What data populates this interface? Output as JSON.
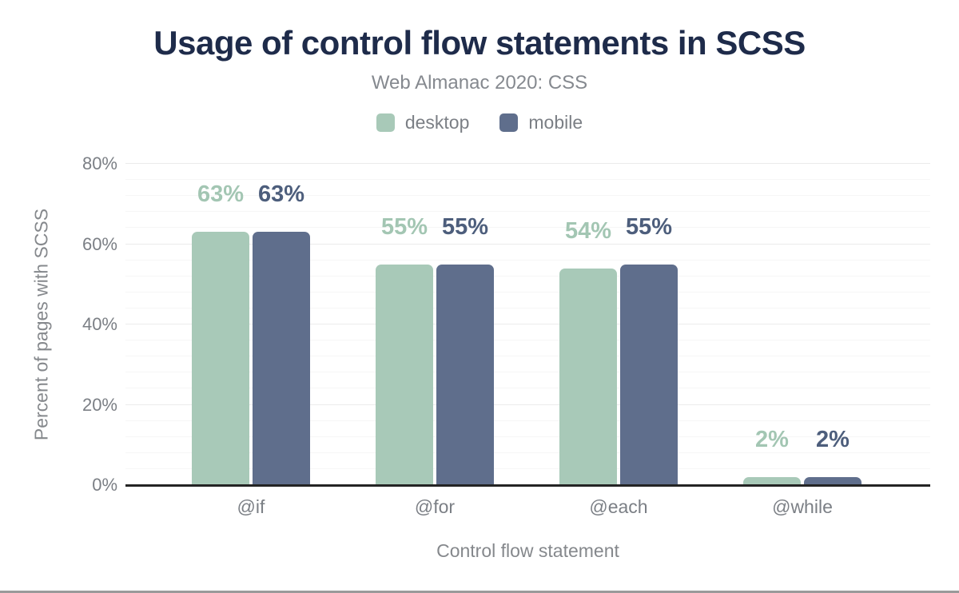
{
  "page": {
    "background": "#ffffff",
    "bottom_border_color": "#9a9a9a"
  },
  "title": {
    "text": "Usage of control flow statements in SCSS",
    "color": "#1e2b4a"
  },
  "subtitle": {
    "text": "Web Almanac 2020: CSS",
    "color": "#85898f"
  },
  "legend": {
    "text_color": "#7b7f85",
    "items": [
      {
        "label": "desktop",
        "color": "#a8c9b8"
      },
      {
        "label": "mobile",
        "color": "#5f6e8c"
      }
    ]
  },
  "chart_data": {
    "type": "bar",
    "title": "Usage of control flow statements in SCSS",
    "subtitle": "Web Almanac 2020: CSS",
    "categories": [
      "@if",
      "@for",
      "@each",
      "@while"
    ],
    "series": [
      {
        "name": "desktop",
        "values": [
          63,
          55,
          54,
          2
        ],
        "unit": "%",
        "color": "#a8c9b8",
        "label_color": "#a3c6b3"
      },
      {
        "name": "mobile",
        "values": [
          63,
          55,
          55,
          2
        ],
        "unit": "%",
        "color": "#5f6e8c",
        "label_color": "#4d5e7c"
      }
    ],
    "data_labels": [
      "63%",
      "63%",
      "55%",
      "55%",
      "54%",
      "55%",
      "2%",
      "2%"
    ],
    "xlabel": "Control flow statement",
    "ylabel": "Percent of pages with SCSS",
    "ylim": [
      0,
      80
    ],
    "yticks": [
      {
        "value": 0,
        "label": "0%"
      },
      {
        "value": 20,
        "label": "20%"
      },
      {
        "value": 40,
        "label": "40%"
      },
      {
        "value": 60,
        "label": "60%"
      },
      {
        "value": 80,
        "label": "80%"
      }
    ],
    "minor_grid_step": 4,
    "major_grid_step": 20,
    "grid": {
      "minor_color": "#f6f6f6",
      "major_color": "#ebebeb",
      "axis_line_color": "#242424"
    },
    "legend_position": "top",
    "grid_on": true
  }
}
